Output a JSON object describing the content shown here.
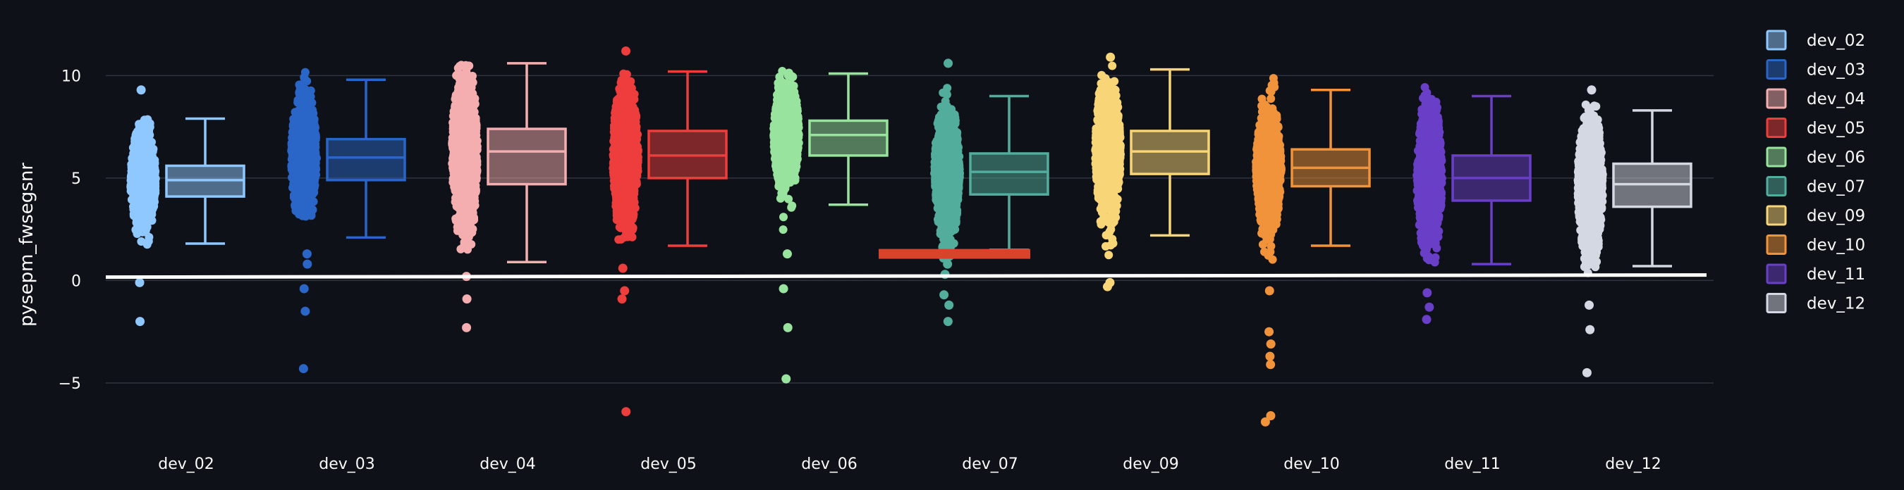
{
  "chart_data": {
    "type": "box",
    "title": "",
    "xlabel": "",
    "ylabel": "pysepm_fwsegsnr",
    "ylim": [
      -8.3,
      11.8
    ],
    "yticks": [
      -5,
      0,
      5,
      10
    ],
    "grid": true,
    "legend_position": "right",
    "reference_line": {
      "y": 0.2,
      "color": "#ffffff"
    },
    "annotation_bar": {
      "category": "dev_07",
      "y": 1.3,
      "color": "#d8432a"
    },
    "categories": [
      "dev_02",
      "dev_03",
      "dev_04",
      "dev_05",
      "dev_06",
      "dev_07",
      "dev_09",
      "dev_10",
      "dev_11",
      "dev_12"
    ],
    "series": [
      {
        "name": "dev_02",
        "color": "#8fc8ff",
        "min": 1.8,
        "q1": 4.1,
        "median": 4.9,
        "q3": 5.6,
        "max": 7.9,
        "cloud_low": 0.5,
        "cloud_high": 8.0,
        "outliers": [
          9.3,
          -0.1,
          -2.0
        ]
      },
      {
        "name": "dev_03",
        "color": "#2a66c8",
        "min": 2.1,
        "q1": 4.9,
        "median": 6.0,
        "q3": 6.9,
        "max": 9.8,
        "cloud_low": 3.0,
        "cloud_high": 10.4,
        "outliers": [
          1.3,
          0.8,
          -0.4,
          -1.5,
          -4.3
        ]
      },
      {
        "name": "dev_04",
        "color": "#f4aeb0",
        "min": 0.9,
        "q1": 4.7,
        "median": 6.3,
        "q3": 7.4,
        "max": 10.6,
        "cloud_low": 1.5,
        "cloud_high": 10.6,
        "outliers": [
          0.2,
          -0.9,
          -2.3
        ]
      },
      {
        "name": "dev_05",
        "color": "#ee3d3d",
        "min": 1.7,
        "q1": 5.0,
        "median": 6.1,
        "q3": 7.3,
        "max": 10.2,
        "cloud_low": 1.8,
        "cloud_high": 10.3,
        "outliers": [
          11.2,
          0.6,
          -0.5,
          -0.9,
          -6.4
        ]
      },
      {
        "name": "dev_06",
        "color": "#98e39d",
        "min": 3.7,
        "q1": 6.1,
        "median": 7.1,
        "q3": 7.8,
        "max": 10.1,
        "cloud_low": 2.4,
        "cloud_high": 10.3,
        "outliers": [
          1.3,
          -0.4,
          -2.3,
          -4.8
        ]
      },
      {
        "name": "dev_07",
        "color": "#52ad9c",
        "min": 1.5,
        "q1": 4.2,
        "median": 5.3,
        "q3": 6.2,
        "max": 9.0,
        "cloud_low": 1.0,
        "cloud_high": 9.5,
        "outliers": [
          10.6,
          0.8,
          0.3,
          -0.7,
          -1.2,
          -2.0
        ]
      },
      {
        "name": "dev_09",
        "color": "#f8d576",
        "min": 2.2,
        "q1": 5.2,
        "median": 6.3,
        "q3": 7.3,
        "max": 10.3,
        "cloud_low": 0.6,
        "cloud_high": 10.5,
        "outliers": [
          10.9,
          -0.1,
          -0.3
        ]
      },
      {
        "name": "dev_10",
        "color": "#f0933a",
        "min": 1.7,
        "q1": 4.6,
        "median": 5.5,
        "q3": 6.4,
        "max": 9.3,
        "cloud_low": 0.8,
        "cloud_high": 10.3,
        "outliers": [
          -0.5,
          -2.5,
          -3.1,
          -3.7,
          -4.1,
          -6.6,
          -6.9
        ]
      },
      {
        "name": "dev_11",
        "color": "#6a3fc7",
        "min": 0.8,
        "q1": 3.9,
        "median": 5.0,
        "q3": 6.1,
        "max": 9.0,
        "cloud_low": 0.8,
        "cloud_high": 9.8,
        "outliers": [
          -0.6,
          -1.3,
          -1.9
        ]
      },
      {
        "name": "dev_12",
        "color": "#d4d8e2",
        "min": 0.7,
        "q1": 3.6,
        "median": 4.7,
        "q3": 5.7,
        "max": 8.3,
        "cloud_low": 0.1,
        "cloud_high": 8.7,
        "outliers": [
          9.3,
          -1.2,
          -2.4,
          -4.5
        ]
      }
    ]
  }
}
